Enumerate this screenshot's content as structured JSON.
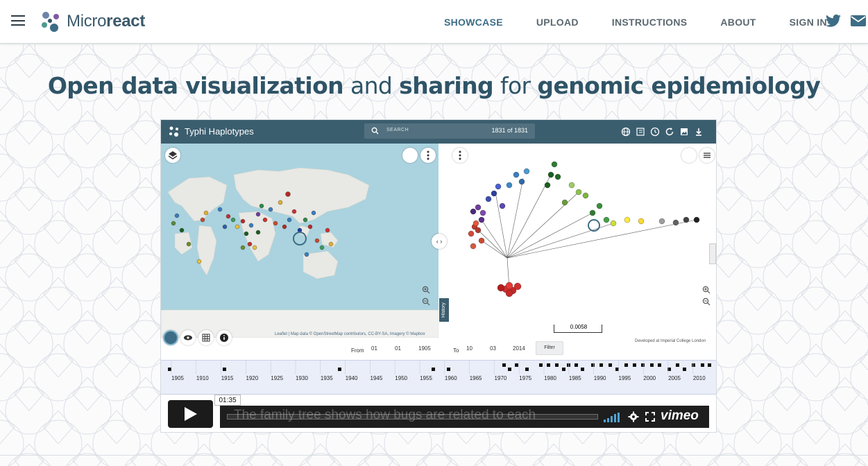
{
  "brand": {
    "name_light": "Micro",
    "name_bold": "react"
  },
  "nav": {
    "showcase": "SHOWCASE",
    "upload": "UPLOAD",
    "instructions": "INSTRUCTIONS",
    "about": "ABOUT",
    "signin": "SIGN IN"
  },
  "hero": {
    "w1": "Open data visualization",
    "w2": " and ",
    "w3": "sharing",
    "w4": " for ",
    "w5": "genomic epidemiology"
  },
  "video": {
    "app_title": "Typhi Haplotypes",
    "search_placeholder": "SEARCH",
    "count": "1831 of 1831",
    "map_attribution": "Leaflet | Map data © OpenStreetMap contributors, CC-BY-SA, Imagery © Mapbox",
    "history_tab": "History",
    "scale_value": "0.0058",
    "developed_by": "Developed at Imperial College London",
    "from_label": "From",
    "from_day": "01",
    "from_month": "01",
    "from_year": "1905",
    "to_label": "To",
    "to_day": "10",
    "to_month": "03",
    "to_year": "2014",
    "filter_label": "Filter",
    "timeline_years": [
      "1905",
      "1910",
      "1915",
      "1920",
      "1925",
      "1930",
      "1935",
      "1940",
      "1945",
      "1950",
      "1955",
      "1960",
      "1965",
      "1970",
      "1975",
      "1980",
      "1985",
      "1990",
      "1995",
      "2000",
      "2005",
      "2010"
    ],
    "time": "01:35",
    "caption": "The family tree shows how bugs are related to each",
    "vimeo": "vimeo"
  },
  "colors": {
    "primary": "#3b5e6f",
    "accent": "#3d6d86"
  },
  "icons": [
    "hamburger-icon",
    "twitter-icon",
    "mail-icon",
    "search-icon",
    "globe-icon",
    "clock-icon",
    "refresh-icon",
    "image-icon",
    "download-icon",
    "play-icon",
    "settings-icon",
    "fullscreen-icon"
  ]
}
